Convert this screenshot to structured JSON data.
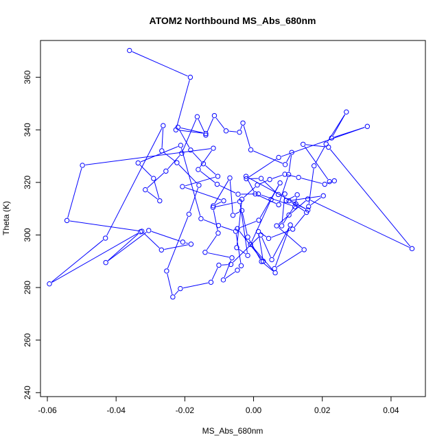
{
  "chart_data": {
    "type": "scatter",
    "title": "ATOM2 Northbound MS_Abs_680nm",
    "xlabel": "MS_Abs_680nm",
    "ylabel": "Theta (K)",
    "xlim": [
      -0.062,
      0.05
    ],
    "ylim": [
      238.5,
      374.0
    ],
    "x_ticks": [
      -0.06,
      -0.04,
      -0.02,
      0.0,
      0.02,
      0.04
    ],
    "x_tick_labels": [
      "-0.06",
      "-0.04",
      "-0.02",
      "0.00",
      "0.02",
      "0.04"
    ],
    "y_ticks": [
      240,
      260,
      280,
      300,
      320,
      340,
      360
    ],
    "y_tick_labels": [
      "240",
      "260",
      "280",
      "300",
      "320",
      "340",
      "360"
    ],
    "grid": false,
    "legend": "none",
    "series_color": "#0000ff",
    "connected": true,
    "x": [
      -0.0361,
      -0.0184,
      -0.0226,
      -0.0139,
      -0.022,
      -0.0183,
      -0.0146,
      -0.0104,
      -0.0207,
      -0.0087,
      -0.0117,
      -0.0069,
      -0.006,
      -0.0034,
      -0.0017,
      0.0023,
      0.0063,
      -0.0009,
      0.0051,
      0.0077,
      0.0015,
      -0.0047,
      0.0028,
      0.0014,
      0.0044,
      0.0114,
      0.0154,
      0.0103,
      0.0203,
      0.016,
      0.0176,
      0.0211,
      0.027,
      0.0227,
      0.0331,
      0.0073,
      -0.0021,
      0.0022,
      0.0072,
      0.0091,
      0.0082,
      0.0123,
      0.0158,
      -0.0022,
      0.0005,
      0.0073,
      0.0102,
      0.0111,
      0.0092,
      -0.0008,
      -0.0031,
      -0.0041,
      -0.008,
      -0.0114,
      -0.0139,
      -0.0164,
      -0.0209,
      -0.0255,
      -0.0315,
      -0.0273,
      -0.0291,
      -0.0336,
      -0.0212,
      -0.0153,
      -0.0102,
      -0.0052,
      -0.0036,
      -0.0047,
      -0.0088,
      -0.0063,
      -0.0141,
      -0.0103,
      -0.0118,
      -0.004,
      -0.0017,
      -0.0049,
      -0.0034,
      0.0011,
      0.0047,
      0.0091,
      0.0131,
      0.0207,
      0.0235,
      0.0221,
      0.0144,
      0.0218,
      0.0461,
      0.0158,
      0.0103,
      0.0067,
      0.0147,
      0.0061,
      0.0107,
      0.0053,
      0.0021,
      -0.0066,
      -0.0101,
      -0.0124,
      -0.0213,
      -0.0235,
      -0.0253,
      -0.0188,
      -0.0159,
      -0.0223,
      -0.0267,
      -0.0263,
      -0.0431,
      -0.0594,
      -0.0329,
      -0.043,
      -0.0305,
      -0.0206,
      -0.0182,
      -0.0268,
      -0.0325,
      -0.0543,
      -0.0498,
      -0.0117,
      -0.0161,
      -0.0106,
      -0.0045,
      0.0014,
      0.012,
      0.0127,
      0.0095
    ],
    "y": [
      370.2,
      360.0,
      340.0,
      338.6,
      341.0,
      332.3,
      327.1,
      322.3,
      318.4,
      313.0,
      311.1,
      321.7,
      307.5,
      309.3,
      299.2,
      289.9,
      285.6,
      296.4,
      313.5,
      319.8,
      305.6,
      302.4,
      290.0,
      301.3,
      298.7,
      302.2,
      308.6,
      313.0,
      314.9,
      310.8,
      326.3,
      334.6,
      346.8,
      336.9,
      341.3,
      329.5,
      321.4,
      321.5,
      315.4,
      315.6,
      303.5,
      311.8,
      309.5,
      322.3,
      315.6,
      311.5,
      323.0,
      331.4,
      326.8,
      332.4,
      342.6,
      339.1,
      339.6,
      345.4,
      338.0,
      345.0,
      331.1,
      324.3,
      317.2,
      313.0,
      321.5,
      327.4,
      334.1,
      306.2,
      303.6,
      301.4,
      288.3,
      286.6,
      282.9,
      291.3,
      293.4,
      300.7,
      310.5,
      312.7,
      292.2,
      295.2,
      313.6,
      319.0,
      321.1,
      323.1,
      321.9,
      319.3,
      320.6,
      320.3,
      334.5,
      333.4,
      294.8,
      313.7,
      307.6,
      303.5,
      294.4,
      287.2,
      303.8,
      290.6,
      300.0,
      288.8,
      288.5,
      282.0,
      279.6,
      276.4,
      286.3,
      307.9,
      318.9,
      327.5,
      332.0,
      341.6,
      298.8,
      281.4,
      301.2,
      289.5,
      301.7,
      297.3,
      296.5,
      294.3,
      301.4,
      305.5,
      326.5,
      333.0,
      324.9,
      319.3,
      315.5,
      315.6,
      310.8,
      315.3,
      313.1
    ]
  }
}
